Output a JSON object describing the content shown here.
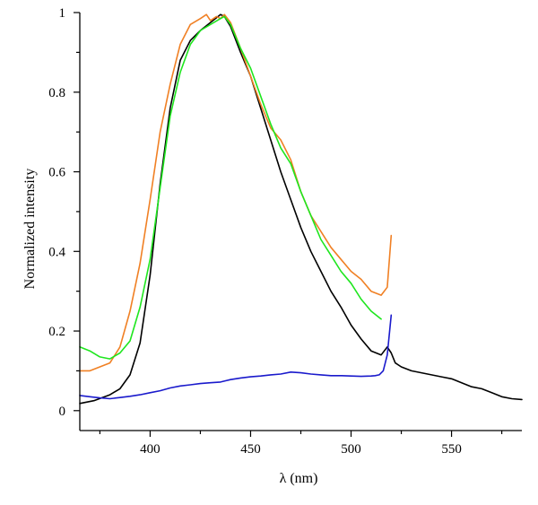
{
  "chart_data": {
    "type": "line",
    "title": "",
    "xlabel": "λ (nm)",
    "ylabel": "Normalized intensity",
    "xlim": [
      365,
      585
    ],
    "ylim": [
      -0.05,
      1.0
    ],
    "xticks": [
      400,
      450,
      500,
      550
    ],
    "yticks": [
      0,
      0.2,
      0.4,
      0.6,
      0.8,
      1
    ],
    "xtick_labels": [
      "400",
      "450",
      "500",
      "550"
    ],
    "ytick_labels": [
      "0",
      "0.2",
      "0.4",
      "0.6",
      "0.8",
      "1"
    ],
    "grid": false,
    "series": [
      {
        "color": "#000000",
        "x": [
          365,
          372,
          380,
          385,
          390,
          395,
          400,
          405,
          410,
          415,
          420,
          425,
          430,
          435,
          437,
          440,
          445,
          450,
          455,
          460,
          465,
          470,
          475,
          480,
          485,
          490,
          495,
          500,
          505,
          510,
          515,
          518,
          520,
          522,
          525,
          530,
          535,
          540,
          545,
          550,
          555,
          560,
          565,
          570,
          575,
          580,
          585
        ],
        "y": [
          0.018,
          0.025,
          0.04,
          0.055,
          0.09,
          0.17,
          0.34,
          0.57,
          0.76,
          0.88,
          0.93,
          0.955,
          0.975,
          0.995,
          0.99,
          0.965,
          0.9,
          0.84,
          0.76,
          0.68,
          0.6,
          0.53,
          0.46,
          0.4,
          0.35,
          0.3,
          0.26,
          0.215,
          0.18,
          0.15,
          0.14,
          0.16,
          0.145,
          0.12,
          0.11,
          0.1,
          0.095,
          0.09,
          0.085,
          0.08,
          0.07,
          0.06,
          0.055,
          0.045,
          0.035,
          0.03,
          0.028
        ]
      },
      {
        "color": "#f08024",
        "x": [
          365,
          370,
          375,
          380,
          385,
          390,
          395,
          400,
          405,
          410,
          415,
          420,
          425,
          428,
          430,
          433,
          435,
          437,
          440,
          445,
          450,
          455,
          460,
          465,
          470,
          475,
          480,
          485,
          490,
          495,
          500,
          505,
          510,
          515,
          518,
          520
        ],
        "y": [
          0.1,
          0.1,
          0.11,
          0.12,
          0.16,
          0.25,
          0.37,
          0.53,
          0.7,
          0.82,
          0.92,
          0.97,
          0.985,
          0.995,
          0.98,
          0.99,
          0.985,
          0.995,
          0.975,
          0.91,
          0.84,
          0.77,
          0.71,
          0.68,
          0.63,
          0.55,
          0.49,
          0.45,
          0.41,
          0.38,
          0.35,
          0.33,
          0.3,
          0.29,
          0.31,
          0.44
        ]
      },
      {
        "color": "#1ee61e",
        "x": [
          365,
          370,
          375,
          380,
          385,
          390,
          395,
          400,
          405,
          410,
          415,
          420,
          425,
          430,
          435,
          437,
          440,
          445,
          450,
          455,
          460,
          465,
          470,
          475,
          480,
          485,
          490,
          495,
          500,
          505,
          510,
          515
        ],
        "y": [
          0.16,
          0.15,
          0.135,
          0.13,
          0.145,
          0.175,
          0.26,
          0.38,
          0.56,
          0.74,
          0.85,
          0.92,
          0.955,
          0.97,
          0.985,
          0.99,
          0.97,
          0.91,
          0.86,
          0.79,
          0.72,
          0.66,
          0.62,
          0.55,
          0.49,
          0.43,
          0.39,
          0.35,
          0.32,
          0.28,
          0.25,
          0.23
        ]
      },
      {
        "color": "#1a1acc",
        "x": [
          365,
          370,
          375,
          380,
          385,
          390,
          395,
          400,
          405,
          410,
          415,
          420,
          425,
          430,
          435,
          440,
          445,
          450,
          455,
          460,
          465,
          470,
          475,
          480,
          485,
          490,
          495,
          500,
          505,
          510,
          512,
          514,
          516,
          518,
          519,
          520
        ],
        "y": [
          0.038,
          0.035,
          0.032,
          0.03,
          0.033,
          0.036,
          0.04,
          0.045,
          0.05,
          0.057,
          0.062,
          0.065,
          0.068,
          0.07,
          0.072,
          0.078,
          0.082,
          0.085,
          0.087,
          0.09,
          0.092,
          0.097,
          0.095,
          0.092,
          0.09,
          0.088,
          0.088,
          0.087,
          0.086,
          0.087,
          0.088,
          0.09,
          0.1,
          0.14,
          0.19,
          0.24
        ]
      }
    ]
  }
}
